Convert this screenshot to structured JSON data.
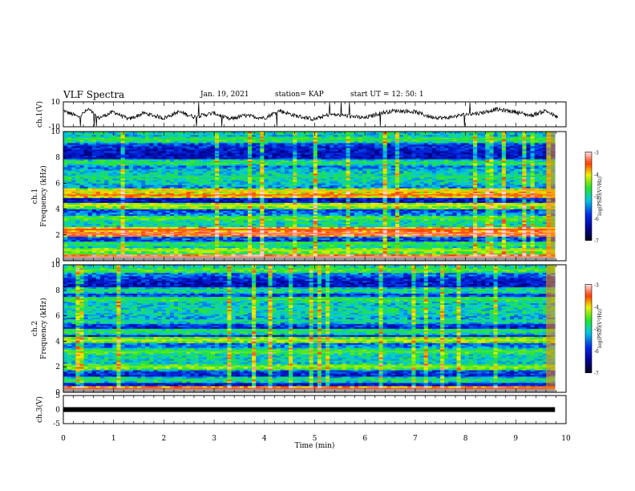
{
  "header": {
    "title": "VLF Spectra",
    "date": "Jan. 19, 2021",
    "station": "station= KAP",
    "start": "start  UT =  12: 50: 1"
  },
  "chart_data": [
    {
      "type": "line",
      "ylabel": "ch.1(V)",
      "ylim": [
        -10,
        10
      ],
      "yticks": [
        "10",
        "-10"
      ],
      "x_unit": "min",
      "xlim": [
        0,
        10
      ],
      "series_color": "#000000",
      "approx_points": [
        [
          0,
          3
        ],
        [
          0.3,
          -2
        ],
        [
          0.5,
          4
        ],
        [
          0.7,
          -3
        ],
        [
          1.0,
          2
        ],
        [
          1.3,
          -4
        ],
        [
          1.6,
          1
        ],
        [
          2.0,
          -3
        ],
        [
          2.3,
          2
        ],
        [
          2.6,
          -2
        ],
        [
          3.0,
          1
        ],
        [
          3.3,
          -4
        ],
        [
          3.6,
          -1
        ],
        [
          4.0,
          -3
        ],
        [
          4.3,
          3
        ],
        [
          4.6,
          -1
        ],
        [
          5.0,
          -4
        ],
        [
          5.3,
          0
        ],
        [
          5.6,
          -1
        ],
        [
          6.0,
          -3
        ],
        [
          6.3,
          1
        ],
        [
          6.6,
          3
        ],
        [
          7.0,
          2
        ],
        [
          7.3,
          -2
        ],
        [
          7.6,
          -3
        ],
        [
          8.0,
          0
        ],
        [
          8.3,
          1
        ],
        [
          8.6,
          4
        ],
        [
          9.0,
          2
        ],
        [
          9.3,
          -1
        ],
        [
          9.6,
          3
        ],
        [
          9.8,
          -2
        ]
      ]
    },
    {
      "type": "heatmap",
      "ylabel": "ch.1\nFrequency (kHz)",
      "ylim": [
        0,
        10
      ],
      "yticks": [
        "0",
        "2",
        "4",
        "6",
        "8",
        "10"
      ],
      "xlim": [
        0,
        10
      ],
      "colorbar": {
        "label": "log(PSD)(V²/Hz)",
        "min": -7,
        "max": -3,
        "ticks": [
          "-3",
          "-4",
          "-5",
          "-6",
          "-7"
        ]
      },
      "bands_khz": [
        {
          "f": 0.3,
          "level": -3.2
        },
        {
          "f": 0.8,
          "level": -4.2
        },
        {
          "f": 1.3,
          "level": -4.6
        },
        {
          "f": 2.1,
          "level": -3.3
        },
        {
          "f": 2.4,
          "level": -3.5
        },
        {
          "f": 3.3,
          "level": -4.5
        },
        {
          "f": 4.3,
          "level": -4.1
        },
        {
          "f": 5.1,
          "level": -3.6
        },
        {
          "f": 5.4,
          "level": -3.9
        },
        {
          "f": 6.5,
          "level": -4.8
        },
        {
          "f": 7.6,
          "level": -4.7
        },
        {
          "f": 9.4,
          "level": -4.6
        }
      ]
    },
    {
      "type": "heatmap",
      "ylabel": "ch.2\nFrequency (kHz)",
      "ylim": [
        0,
        10
      ],
      "yticks": [
        "0",
        "2",
        "4",
        "6",
        "8",
        "10"
      ],
      "xlim": [
        0,
        10
      ],
      "colorbar": {
        "label": "log(PSD)(V²/Hz)",
        "min": -7,
        "max": -3,
        "ticks": [
          "-3",
          "-4",
          "-5",
          "-6",
          "-7"
        ]
      },
      "bands_khz": [
        {
          "f": 0.3,
          "level": -3.4
        },
        {
          "f": 1.0,
          "level": -4.8
        },
        {
          "f": 2.0,
          "level": -4.3
        },
        {
          "f": 3.2,
          "level": -4.5
        },
        {
          "f": 4.1,
          "level": -4.2
        },
        {
          "f": 4.8,
          "level": -4.7
        },
        {
          "f": 5.6,
          "level": -4.9
        },
        {
          "f": 7.3,
          "level": -4.6
        },
        {
          "f": 8.0,
          "level": -4.8
        },
        {
          "f": 9.6,
          "level": -4.5
        }
      ]
    },
    {
      "type": "line",
      "ylabel": "ch.3(V)",
      "ylim": [
        -5,
        5
      ],
      "yticks": [
        "5",
        "0",
        "-5"
      ],
      "xlim": [
        0,
        10
      ],
      "series_color": "#000000",
      "constant_value": 0
    }
  ],
  "xaxis": {
    "label": "Time  (min)",
    "ticks": [
      "0",
      "1",
      "2",
      "3",
      "4",
      "5",
      "6",
      "7",
      "8",
      "9",
      "10"
    ]
  }
}
